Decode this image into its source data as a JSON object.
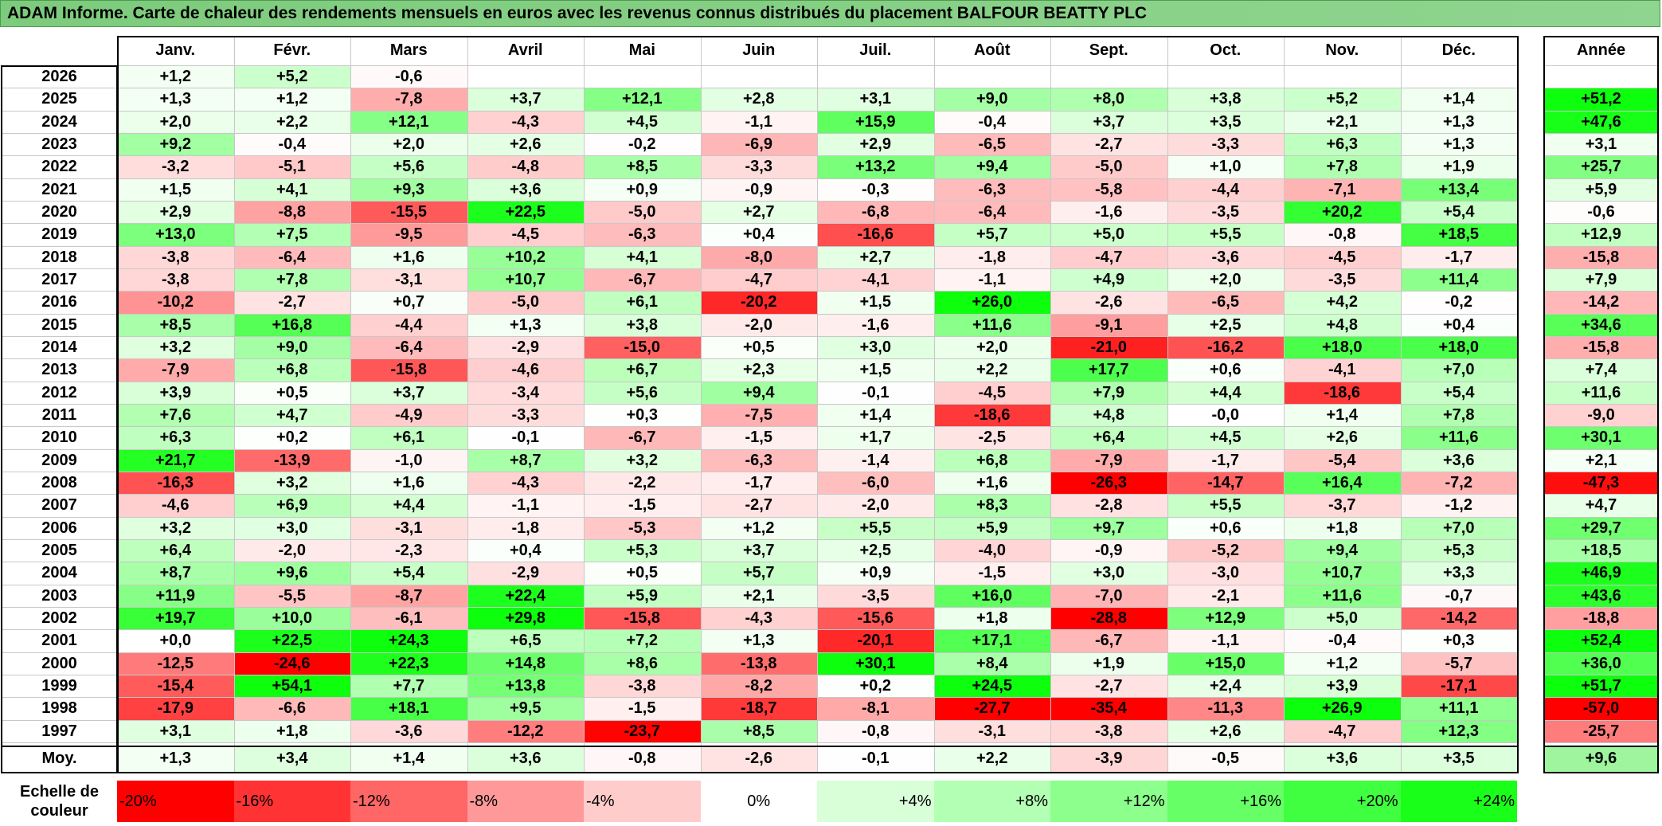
{
  "title": "ADAM Informe. Carte de chaleur des rendements mensuels en euros avec les revenus connus distribués du placement BALFOUR BEATTY PLC",
  "chart_data": {
    "type": "heatmap",
    "months": [
      "Janv.",
      "Févr.",
      "Mars",
      "Avril",
      "Mai",
      "Juin",
      "Juil.",
      "Août",
      "Sept.",
      "Oct.",
      "Nov.",
      "Déc."
    ],
    "year_header": "Année",
    "avg_label": "Moy.",
    "rows": [
      {
        "year": "2026",
        "m": [
          "+1,2",
          "+5,2",
          "-0,6",
          "",
          "",
          "",
          "",
          "",
          "",
          "",
          "",
          ""
        ],
        "y": ""
      },
      {
        "year": "2025",
        "m": [
          "+1,3",
          "+1,2",
          "-7,8",
          "+3,7",
          "+12,1",
          "+2,8",
          "+3,1",
          "+9,0",
          "+8,0",
          "+3,8",
          "+5,2",
          "+1,4"
        ],
        "y": "+51,2"
      },
      {
        "year": "2024",
        "m": [
          "+2,0",
          "+2,2",
          "+12,1",
          "-4,3",
          "+4,5",
          "-1,1",
          "+15,9",
          "-0,4",
          "+3,7",
          "+3,5",
          "+2,1",
          "+1,3"
        ],
        "y": "+47,6"
      },
      {
        "year": "2023",
        "m": [
          "+9,2",
          "-0,4",
          "+2,0",
          "+2,6",
          "-0,2",
          "-6,9",
          "+2,9",
          "-6,5",
          "-2,7",
          "-3,3",
          "+6,3",
          "+1,3"
        ],
        "y": "+3,1"
      },
      {
        "year": "2022",
        "m": [
          "-3,2",
          "-5,1",
          "+5,6",
          "-4,8",
          "+8,5",
          "-3,3",
          "+13,2",
          "+9,4",
          "-5,0",
          "+1,0",
          "+7,8",
          "+1,9"
        ],
        "y": "+25,7"
      },
      {
        "year": "2021",
        "m": [
          "+1,5",
          "+4,1",
          "+9,3",
          "+3,6",
          "+0,9",
          "-0,9",
          "-0,3",
          "-6,3",
          "-5,8",
          "-4,4",
          "-7,1",
          "+13,4"
        ],
        "y": "+5,9"
      },
      {
        "year": "2020",
        "m": [
          "+2,9",
          "-8,8",
          "-15,5",
          "+22,5",
          "-5,0",
          "+2,7",
          "-6,8",
          "-6,4",
          "-1,6",
          "-3,5",
          "+20,2",
          "+5,4"
        ],
        "y": "-0,6"
      },
      {
        "year": "2019",
        "m": [
          "+13,0",
          "+7,5",
          "-9,5",
          "-4,5",
          "-6,3",
          "+0,4",
          "-16,6",
          "+5,7",
          "+5,0",
          "+5,5",
          "-0,8",
          "+18,5"
        ],
        "y": "+12,9"
      },
      {
        "year": "2018",
        "m": [
          "-3,8",
          "-6,4",
          "+1,6",
          "+10,2",
          "+4,1",
          "-8,0",
          "+2,7",
          "-1,8",
          "-4,7",
          "-3,6",
          "-4,5",
          "-1,7"
        ],
        "y": "-15,8"
      },
      {
        "year": "2017",
        "m": [
          "-3,8",
          "+7,8",
          "-3,1",
          "+10,7",
          "-6,7",
          "-4,7",
          "-4,1",
          "-1,1",
          "+4,9",
          "+2,0",
          "-3,5",
          "+11,4"
        ],
        "y": "+7,9"
      },
      {
        "year": "2016",
        "m": [
          "-10,2",
          "-2,7",
          "+0,7",
          "-5,0",
          "+6,1",
          "-20,2",
          "+1,5",
          "+26,0",
          "-2,6",
          "-6,5",
          "+4,2",
          "-0,2"
        ],
        "y": "-14,2"
      },
      {
        "year": "2015",
        "m": [
          "+8,5",
          "+16,8",
          "-4,4",
          "+1,3",
          "+3,8",
          "-2,0",
          "-1,6",
          "+11,6",
          "-9,1",
          "+2,5",
          "+4,8",
          "+0,4"
        ],
        "y": "+34,6"
      },
      {
        "year": "2014",
        "m": [
          "+3,2",
          "+9,0",
          "-6,4",
          "-2,9",
          "-15,0",
          "+0,5",
          "+3,0",
          "+2,0",
          "-21,0",
          "-16,2",
          "+18,0",
          "+18,0"
        ],
        "y": "-15,8"
      },
      {
        "year": "2013",
        "m": [
          "-7,9",
          "+6,8",
          "-15,8",
          "-4,6",
          "+6,7",
          "+2,3",
          "+1,5",
          "+2,2",
          "+17,7",
          "+0,6",
          "-4,1",
          "+7,0"
        ],
        "y": "+7,4"
      },
      {
        "year": "2012",
        "m": [
          "+3,9",
          "+0,5",
          "+3,7",
          "-3,4",
          "+5,6",
          "+9,4",
          "-0,1",
          "-4,5",
          "+7,9",
          "+4,4",
          "-18,6",
          "+5,4"
        ],
        "y": "+11,6"
      },
      {
        "year": "2011",
        "m": [
          "+7,6",
          "+4,7",
          "-4,9",
          "-3,3",
          "+0,3",
          "-7,5",
          "+1,4",
          "-18,6",
          "+4,8",
          "-0,0",
          "+1,4",
          "+7,8"
        ],
        "y": "-9,0"
      },
      {
        "year": "2010",
        "m": [
          "+6,3",
          "+0,2",
          "+6,1",
          "-0,1",
          "-6,7",
          "-1,5",
          "+1,7",
          "-2,5",
          "+6,4",
          "+4,5",
          "+2,6",
          "+11,6"
        ],
        "y": "+30,1"
      },
      {
        "year": "2009",
        "m": [
          "+21,7",
          "-13,9",
          "-1,0",
          "+8,7",
          "+3,2",
          "-6,3",
          "-1,4",
          "+6,8",
          "-7,9",
          "-1,7",
          "-5,4",
          "+3,6"
        ],
        "y": "+2,1"
      },
      {
        "year": "2008",
        "m": [
          "-16,3",
          "+3,2",
          "+1,6",
          "-4,3",
          "-2,2",
          "-1,7",
          "-6,0",
          "+1,6",
          "-26,3",
          "-14,7",
          "+16,4",
          "-7,2"
        ],
        "y": "-47,3"
      },
      {
        "year": "2007",
        "m": [
          "-4,6",
          "+6,9",
          "+4,4",
          "-1,1",
          "-1,5",
          "-2,7",
          "-2,0",
          "+8,3",
          "-2,8",
          "+5,5",
          "-3,7",
          "-1,2"
        ],
        "y": "+4,7"
      },
      {
        "year": "2006",
        "m": [
          "+3,2",
          "+3,0",
          "-3,1",
          "-1,8",
          "-5,3",
          "+1,2",
          "+5,5",
          "+5,9",
          "+9,7",
          "+0,6",
          "+1,8",
          "+7,0"
        ],
        "y": "+29,7"
      },
      {
        "year": "2005",
        "m": [
          "+6,4",
          "-2,0",
          "-2,3",
          "+0,4",
          "+5,3",
          "+3,7",
          "+2,5",
          "-4,0",
          "-0,9",
          "-5,2",
          "+9,4",
          "+5,3"
        ],
        "y": "+18,5"
      },
      {
        "year": "2004",
        "m": [
          "+8,7",
          "+9,6",
          "+5,4",
          "-2,9",
          "+0,5",
          "+5,7",
          "+0,9",
          "-1,5",
          "+3,0",
          "-3,0",
          "+10,7",
          "+3,3"
        ],
        "y": "+46,9"
      },
      {
        "year": "2003",
        "m": [
          "+11,9",
          "-5,5",
          "-8,7",
          "+22,4",
          "+5,9",
          "+2,1",
          "-3,5",
          "+16,0",
          "-7,0",
          "-2,1",
          "+11,6",
          "-0,7"
        ],
        "y": "+43,6"
      },
      {
        "year": "2002",
        "m": [
          "+19,7",
          "+10,0",
          "-6,1",
          "+29,8",
          "-15,8",
          "-4,3",
          "-15,6",
          "+1,8",
          "-28,8",
          "+12,9",
          "+5,0",
          "-14,2"
        ],
        "y": "-18,8"
      },
      {
        "year": "2001",
        "m": [
          "+0,0",
          "+22,5",
          "+24,3",
          "+6,5",
          "+7,2",
          "+1,3",
          "-20,1",
          "+17,1",
          "-6,7",
          "-1,1",
          "-0,4",
          "+0,3"
        ],
        "y": "+52,4"
      },
      {
        "year": "2000",
        "m": [
          "-12,5",
          "-24,6",
          "+22,3",
          "+14,8",
          "+8,6",
          "-13,8",
          "+30,1",
          "+8,4",
          "+1,9",
          "+15,0",
          "+1,2",
          "-5,7"
        ],
        "y": "+36,0"
      },
      {
        "year": "1999",
        "m": [
          "-15,4",
          "+54,1",
          "+7,7",
          "+13,8",
          "-3,8",
          "-8,2",
          "+0,2",
          "+24,5",
          "-2,7",
          "+2,4",
          "+3,9",
          "-17,1"
        ],
        "y": "+51,7"
      },
      {
        "year": "1998",
        "m": [
          "-17,9",
          "-6,6",
          "+18,1",
          "+9,5",
          "-1,5",
          "-18,7",
          "-8,1",
          "-27,7",
          "-35,4",
          "-11,3",
          "+26,9",
          "+11,1"
        ],
        "y": "-57,0"
      },
      {
        "year": "1997",
        "m": [
          "+3,1",
          "+1,8",
          "-3,6",
          "-12,2",
          "-23,7",
          "+8,5",
          "-0,8",
          "-3,1",
          "-3,8",
          "+2,6",
          "-4,7",
          "+12,3"
        ],
        "y": "-25,7"
      }
    ],
    "avg": {
      "m": [
        "+1,3",
        "+3,4",
        "+1,4",
        "+3,6",
        "-0,8",
        "-2,6",
        "-0,1",
        "+2,2",
        "-3,9",
        "-0,5",
        "+3,6",
        "+3,5"
      ],
      "y": "+9,6"
    },
    "scale_label": "Echelle de couleur",
    "scale": [
      {
        "label": "-20%",
        "color": "#ff0000"
      },
      {
        "label": "-16%",
        "color": "#ff3333"
      },
      {
        "label": "-12%",
        "color": "#ff6666"
      },
      {
        "label": "-8%",
        "color": "#ff9999"
      },
      {
        "label": "-4%",
        "color": "#ffcccc"
      },
      {
        "label": "0%",
        "color": "#ffffff"
      },
      {
        "label": "+4%",
        "color": "#d9ffd9"
      },
      {
        "label": "+8%",
        "color": "#b3ffb3"
      },
      {
        "label": "+12%",
        "color": "#8cff8c"
      },
      {
        "label": "+16%",
        "color": "#66ff66"
      },
      {
        "label": "+20%",
        "color": "#40ff40"
      },
      {
        "label": "+24%",
        "color": "#1aff1a"
      }
    ]
  }
}
